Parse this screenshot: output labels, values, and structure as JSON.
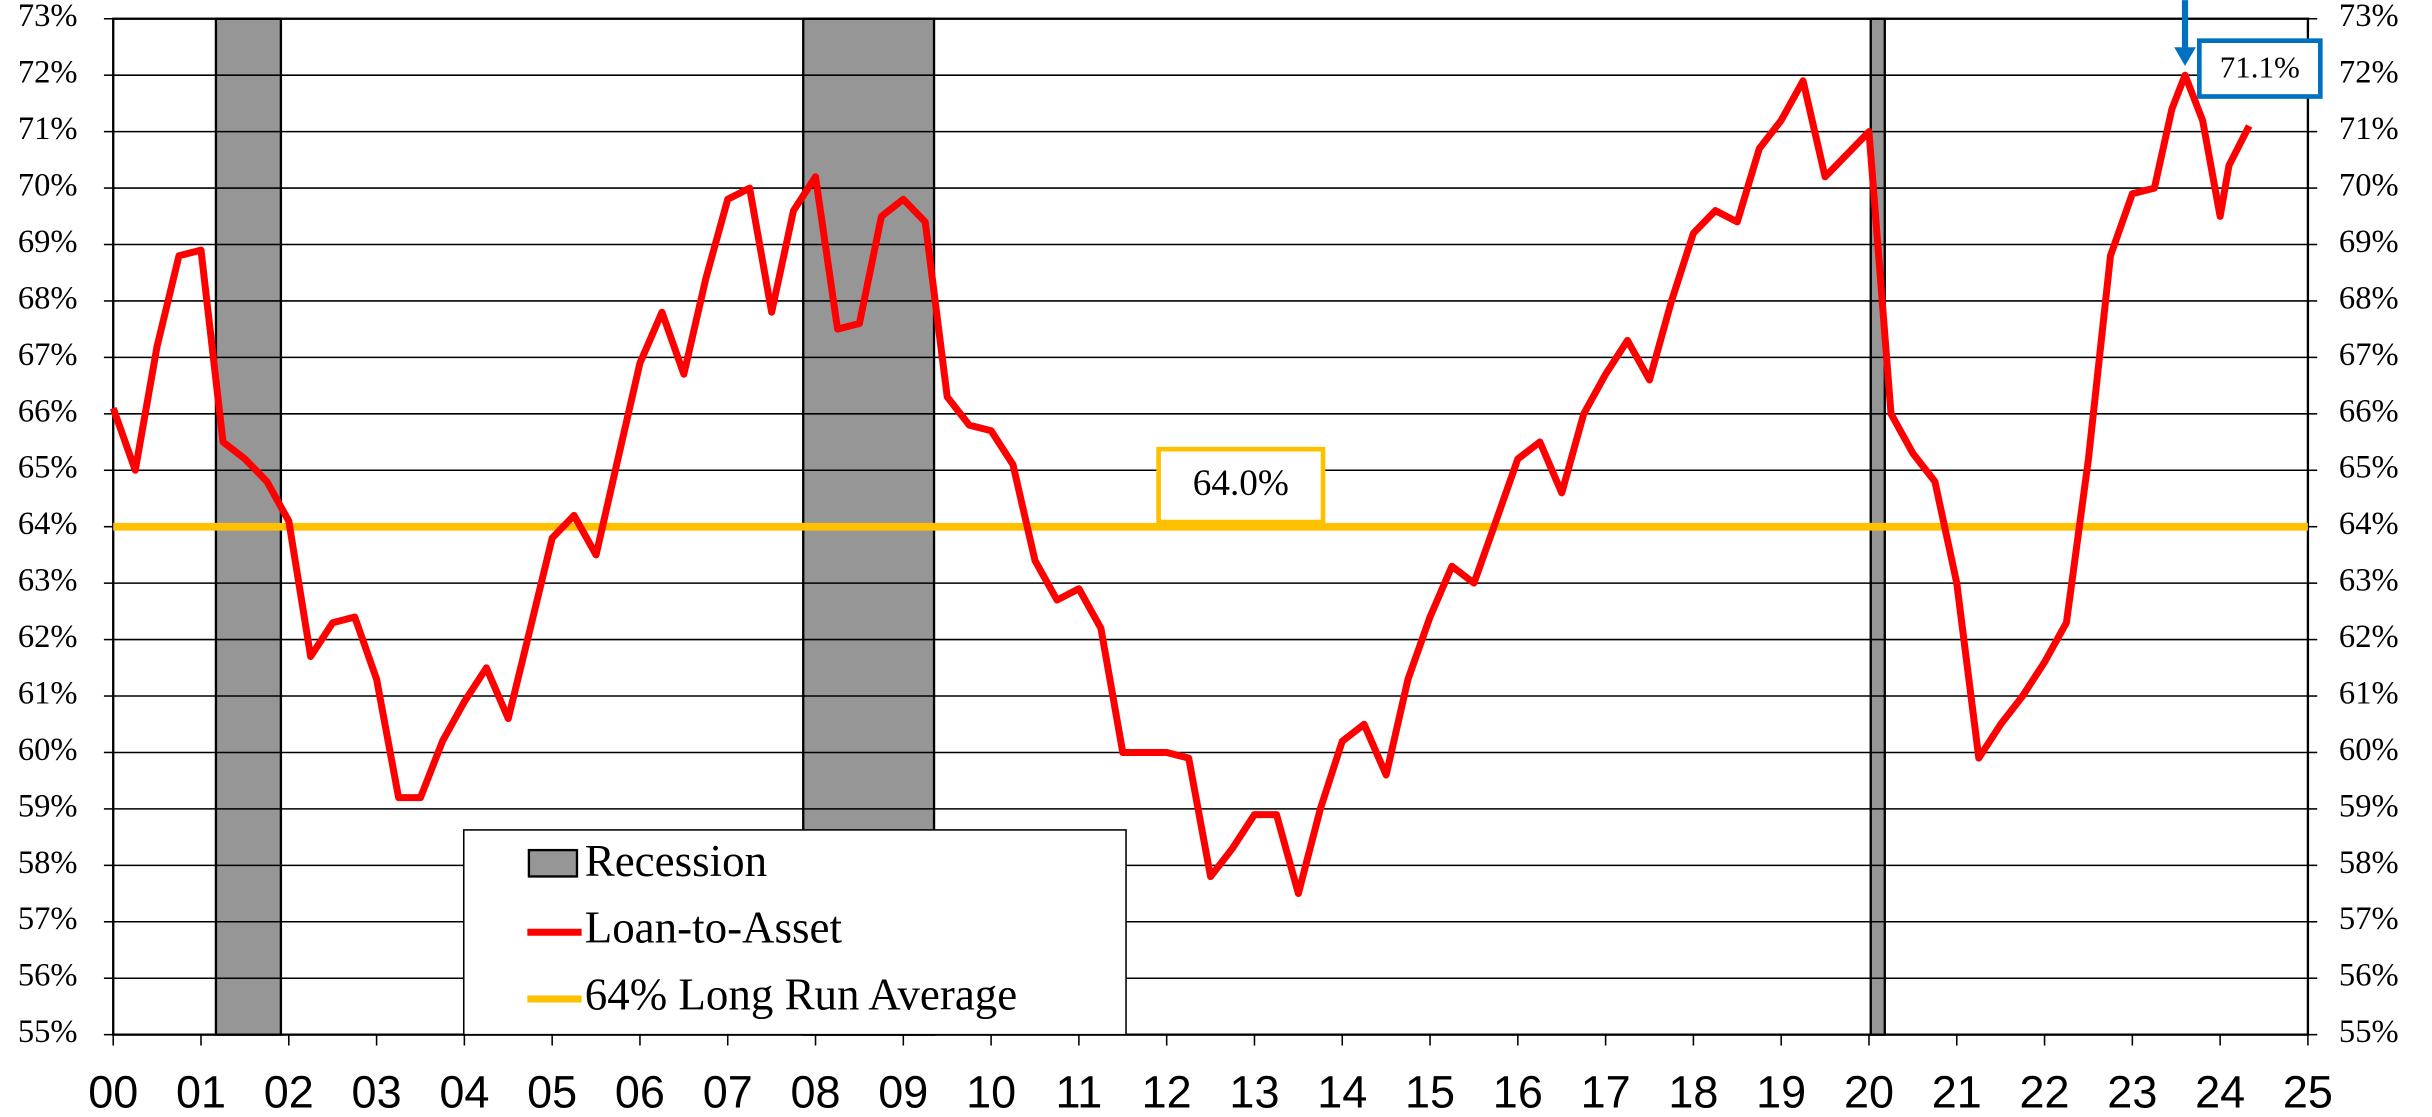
{
  "chart_data": {
    "type": "line",
    "x": [
      2000,
      2000.25,
      2000.5,
      2000.75,
      2001,
      2001.25,
      2001.5,
      2001.75,
      2002,
      2002.25,
      2002.5,
      2002.75,
      2003,
      2003.25,
      2003.5,
      2003.75,
      2004,
      2004.25,
      2004.5,
      2004.75,
      2005,
      2005.25,
      2005.5,
      2005.75,
      2006,
      2006.25,
      2006.5,
      2006.75,
      2007,
      2007.25,
      2007.5,
      2007.75,
      2008,
      2008.25,
      2008.5,
      2008.75,
      2009,
      2009.25,
      2009.5,
      2009.75,
      2010,
      2010.25,
      2010.5,
      2010.75,
      2011,
      2011.25,
      2011.5,
      2011.75,
      2012,
      2012.25,
      2012.5,
      2012.75,
      2013,
      2013.25,
      2013.5,
      2013.75,
      2014,
      2014.25,
      2014.5,
      2014.75,
      2015,
      2015.25,
      2015.5,
      2015.75,
      2016,
      2016.25,
      2016.5,
      2016.75,
      2017,
      2017.25,
      2017.5,
      2017.75,
      2018,
      2018.25,
      2018.5,
      2018.75,
      2019,
      2019.25,
      2019.5,
      2019.75,
      2020,
      2020.25,
      2020.5,
      2020.75,
      2021,
      2021.25,
      2021.5,
      2021.75,
      2022,
      2022.25,
      2022.5,
      2022.75,
      2023,
      2023.25,
      2023.45,
      2023.6,
      2023.8,
      2024,
      2024.1,
      2024.33
    ],
    "series": [
      {
        "name": "Loan-to-Asset",
        "color": "#ff0000",
        "values": [
          66.1,
          65.0,
          67.2,
          68.8,
          68.9,
          65.5,
          65.2,
          64.8,
          64.1,
          61.7,
          62.3,
          62.4,
          61.3,
          59.2,
          59.2,
          60.2,
          60.9,
          61.5,
          60.6,
          62.2,
          63.8,
          64.2,
          63.5,
          65.2,
          66.9,
          67.8,
          66.7,
          68.4,
          69.8,
          70.0,
          67.8,
          69.6,
          70.2,
          67.5,
          67.6,
          69.5,
          69.8,
          69.4,
          66.3,
          65.8,
          65.7,
          65.1,
          63.4,
          62.7,
          62.9,
          62.2,
          60.0,
          60.0,
          60.0,
          59.9,
          57.8,
          58.3,
          58.9,
          58.9,
          57.5,
          59.0,
          60.2,
          60.5,
          59.6,
          61.3,
          62.4,
          63.3,
          63.0,
          64.1,
          65.2,
          65.5,
          64.6,
          66.0,
          66.7,
          67.3,
          66.6,
          68.0,
          69.2,
          69.6,
          69.4,
          70.7,
          71.2,
          71.9,
          70.2,
          70.6,
          71.0,
          66.0,
          65.3,
          64.8,
          63.0,
          59.9,
          60.5,
          61.0,
          61.6,
          62.3,
          65.2,
          68.8,
          69.9,
          70.0,
          71.4,
          72.0,
          71.2,
          69.5,
          70.4,
          71.1
        ]
      }
    ],
    "recession": {
      "name": "Recession",
      "color": "#969696",
      "periods": [
        [
          2001.17,
          2001.91
        ],
        [
          2007.86,
          2009.35
        ],
        [
          2020.02,
          2020.18
        ]
      ]
    },
    "average": {
      "name": "64% Long Run Average",
      "color": "#ffc000",
      "value": 64,
      "label": "64.0%"
    },
    "annotation": {
      "value": 71.1,
      "label": "71.1%",
      "color": "#0070c0"
    },
    "xlim": [
      2000,
      2025
    ],
    "xticks": [
      {
        "value": 2000,
        "label": "00"
      },
      {
        "value": 2001,
        "label": "01"
      },
      {
        "value": 2002,
        "label": "02"
      },
      {
        "value": 2003,
        "label": "03"
      },
      {
        "value": 2004,
        "label": "04"
      },
      {
        "value": 2005,
        "label": "05"
      },
      {
        "value": 2006,
        "label": "06"
      },
      {
        "value": 2007,
        "label": "07"
      },
      {
        "value": 2008,
        "label": "08"
      },
      {
        "value": 2009,
        "label": "09"
      },
      {
        "value": 2010,
        "label": "10"
      },
      {
        "value": 2011,
        "label": "11"
      },
      {
        "value": 2012,
        "label": "12"
      },
      {
        "value": 2013,
        "label": "13"
      },
      {
        "value": 2014,
        "label": "14"
      },
      {
        "value": 2015,
        "label": "15"
      },
      {
        "value": 2016,
        "label": "16"
      },
      {
        "value": 2017,
        "label": "17"
      },
      {
        "value": 2018,
        "label": "18"
      },
      {
        "value": 2019,
        "label": "19"
      },
      {
        "value": 2020,
        "label": "20"
      },
      {
        "value": 2021,
        "label": "21"
      },
      {
        "value": 2022,
        "label": "22"
      },
      {
        "value": 2023,
        "label": "23"
      },
      {
        "value": 2024,
        "label": "24"
      },
      {
        "value": 2025,
        "label": "25"
      }
    ],
    "ylim": [
      55,
      73
    ],
    "yticks": [
      {
        "value": 55,
        "label": "55%"
      },
      {
        "value": 56,
        "label": "56%"
      },
      {
        "value": 57,
        "label": "57%"
      },
      {
        "value": 58,
        "label": "58%"
      },
      {
        "value": 59,
        "label": "59%"
      },
      {
        "value": 60,
        "label": "60%"
      },
      {
        "value": 61,
        "label": "61%"
      },
      {
        "value": 62,
        "label": "62%"
      },
      {
        "value": 63,
        "label": "63%"
      },
      {
        "value": 64,
        "label": "64%"
      },
      {
        "value": 65,
        "label": "65%"
      },
      {
        "value": 66,
        "label": "66%"
      },
      {
        "value": 67,
        "label": "67%"
      },
      {
        "value": 68,
        "label": "68%"
      },
      {
        "value": 69,
        "label": "69%"
      },
      {
        "value": 70,
        "label": "70%"
      },
      {
        "value": 71,
        "label": "71%"
      },
      {
        "value": 72,
        "label": "72%"
      },
      {
        "value": 73,
        "label": "73%"
      }
    ],
    "grid": true
  }
}
